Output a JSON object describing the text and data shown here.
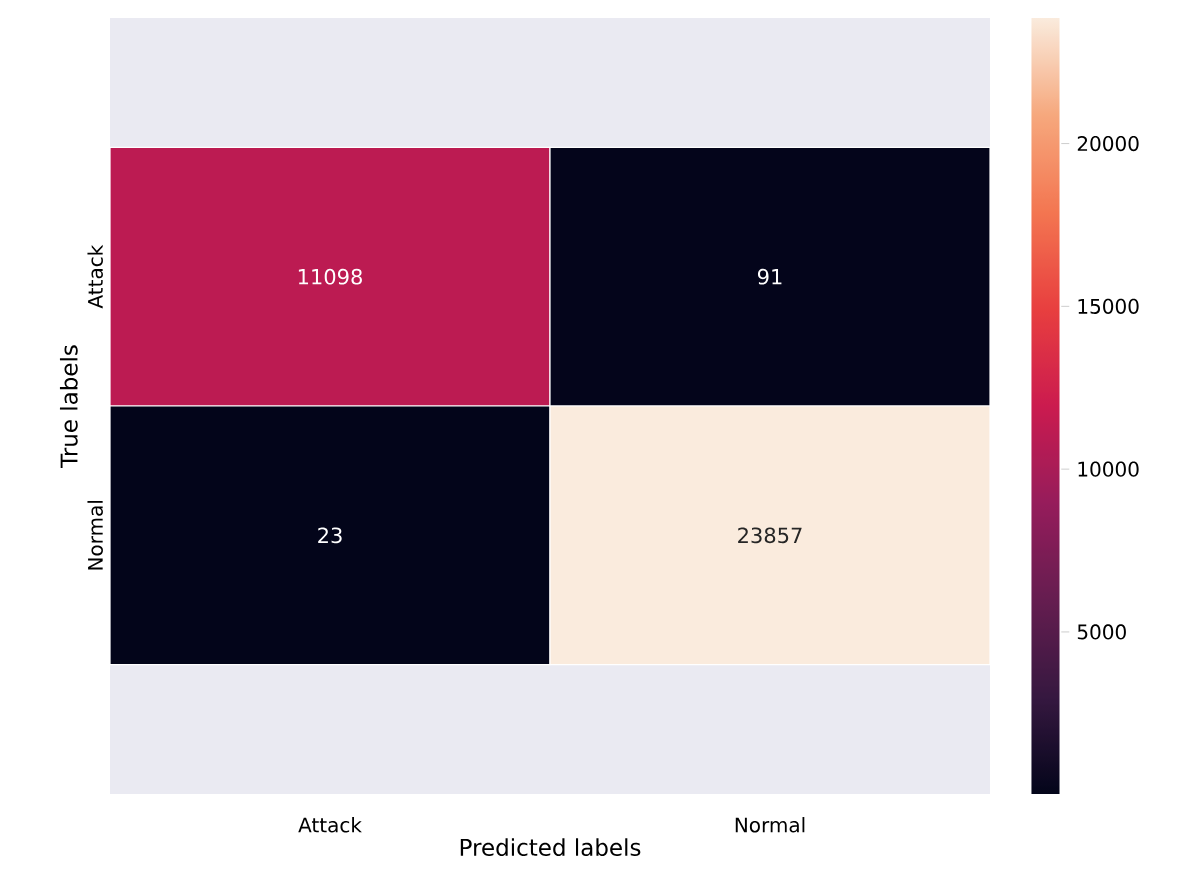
{
  "chart_data": {
    "type": "heatmap",
    "xlabel": "Predicted labels",
    "ylabel": "True labels",
    "categories": [
      "Attack",
      "Normal"
    ],
    "y_categories": [
      "Attack",
      "Normal"
    ],
    "cells": [
      [
        11098,
        91
      ],
      [
        23,
        23857
      ]
    ],
    "data_labels": true,
    "clim": [
      23,
      23857
    ],
    "cticks": [
      5000,
      10000,
      15000,
      20000
    ]
  }
}
